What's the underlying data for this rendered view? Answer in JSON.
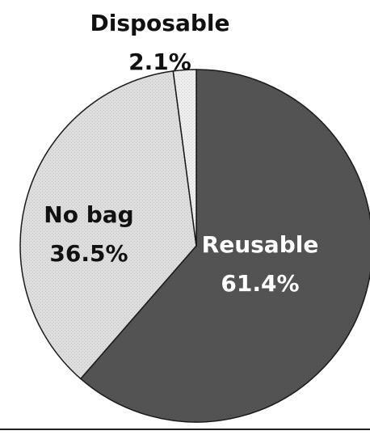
{
  "chart_data": {
    "type": "pie",
    "title": "",
    "slices": [
      {
        "label": "Reusable",
        "value": 61.4,
        "value_label": "61.4%",
        "color": "#545454",
        "text_color": "#ffffff"
      },
      {
        "label": "No bag",
        "value": 36.5,
        "value_label": "36.5%",
        "color": "#dedede",
        "text_color": "#111111"
      },
      {
        "label": "Disposable",
        "value": 2.1,
        "value_label": "2.1%",
        "color": "#eeeeee",
        "text_color": "#111111"
      }
    ],
    "start_angle_deg": 0,
    "direction": "clockwise"
  }
}
